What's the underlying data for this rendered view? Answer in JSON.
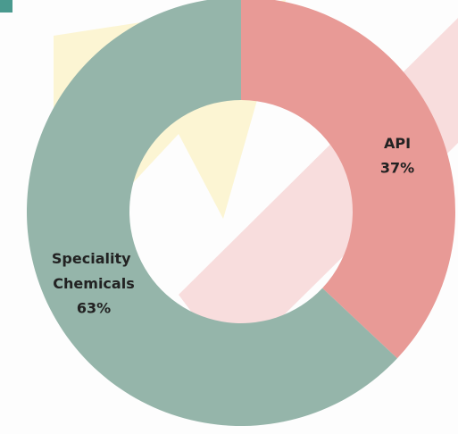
{
  "chart_data": {
    "type": "donut",
    "categories": [
      "API",
      "Speciality Chemicals"
    ],
    "values": [
      37,
      63
    ],
    "value_labels": [
      "37%",
      "63%"
    ],
    "colors": [
      "#e89a96",
      "#95b5aa"
    ]
  }
}
